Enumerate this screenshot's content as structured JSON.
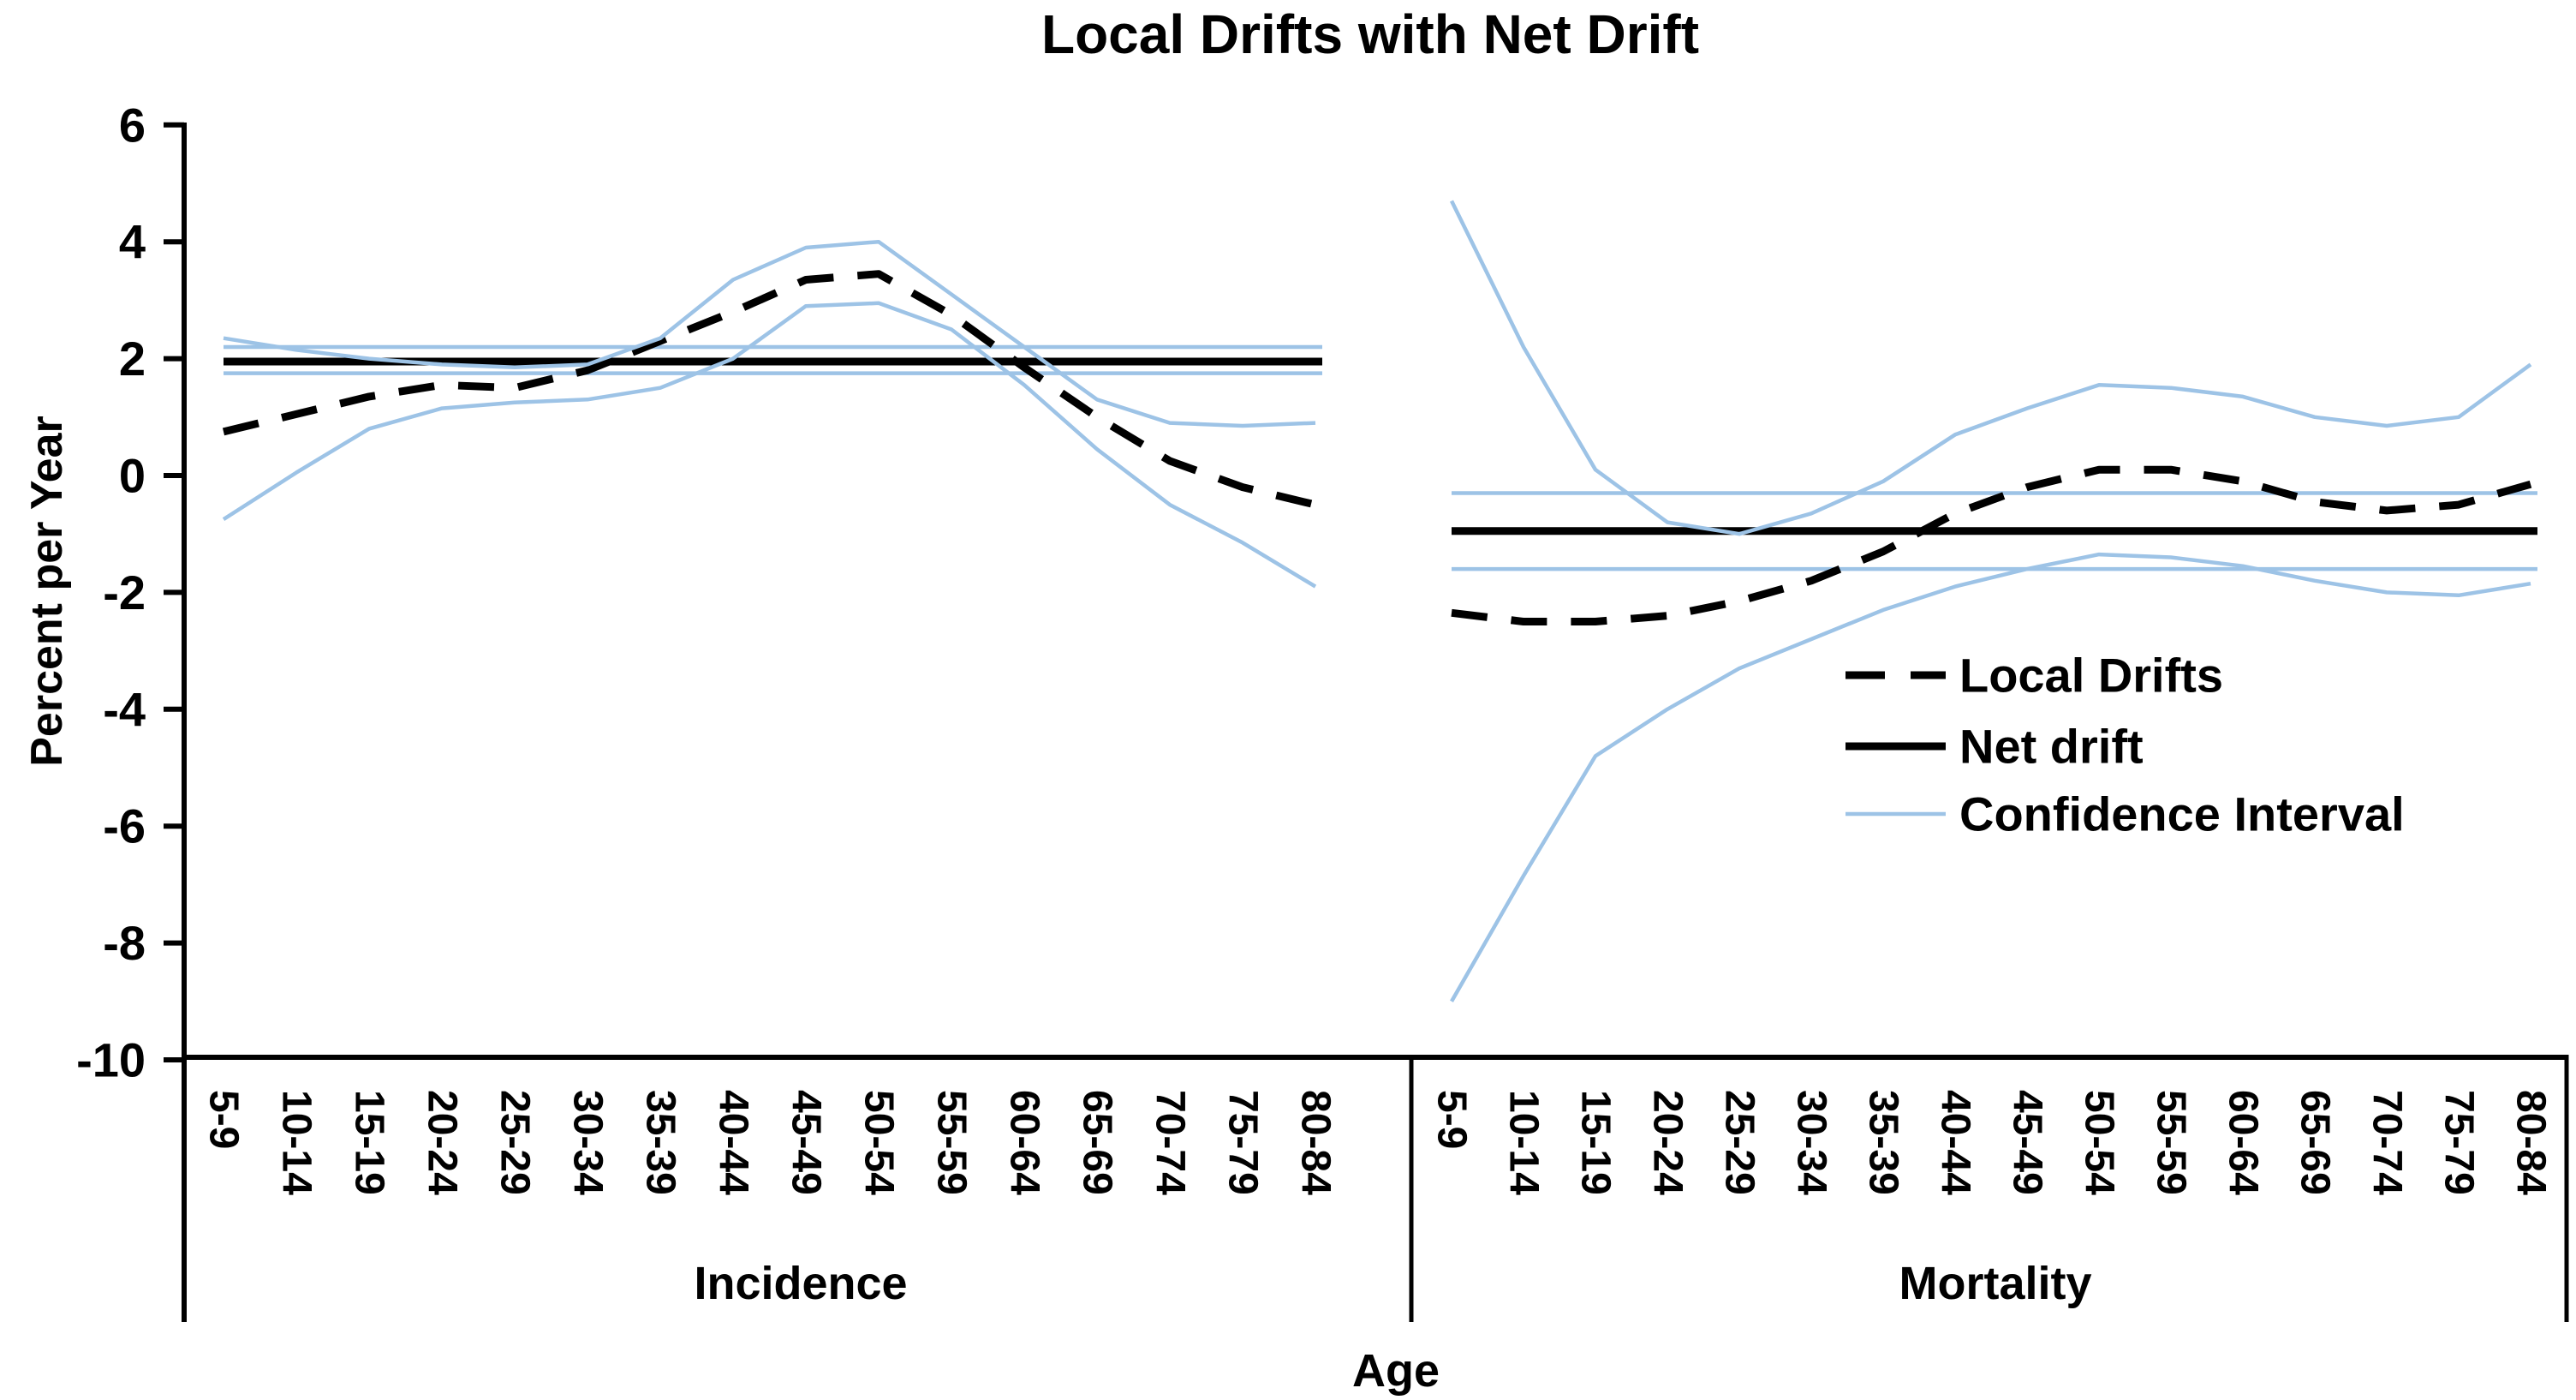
{
  "chart": {
    "title": "Local Drifts with Net Drift",
    "y_axis": {
      "label": "Percent per Year",
      "ticks": [
        6,
        4,
        2,
        0,
        -2,
        -4,
        -6,
        -8,
        -10
      ],
      "min": -10,
      "max": 6
    },
    "x_axis": {
      "label": "Age"
    },
    "colors": {
      "line_black": "#000000",
      "confidence_blue": "#9DC3E6",
      "background": "#FFFFFF"
    },
    "legend": {
      "items": [
        {
          "label": "Local Drifts",
          "style": "dashed-black"
        },
        {
          "label": "Net drift",
          "style": "solid-black"
        },
        {
          "label": "Confidence Interval",
          "style": "thin-blue"
        }
      ]
    }
  },
  "chart_data": [
    {
      "type": "line",
      "group_label": "Incidence",
      "categories": [
        "5-9",
        "10-14",
        "15-19",
        "20-24",
        "25-29",
        "30-34",
        "35-39",
        "40-44",
        "45-49",
        "50-54",
        "55-59",
        "60-64",
        "65-69",
        "70-74",
        "75-79",
        "80-84"
      ],
      "net_drift": 1.95,
      "net_drift_ci": [
        1.75,
        2.2
      ],
      "series": [
        {
          "name": "Local Drifts",
          "role": "local",
          "style": "dashed-black",
          "values": [
            0.75,
            1.05,
            1.35,
            1.55,
            1.5,
            1.8,
            2.3,
            2.8,
            3.35,
            3.45,
            2.75,
            1.85,
            1.0,
            0.25,
            -0.2,
            -0.5
          ]
        },
        {
          "name": "Confidence Interval upper",
          "role": "ci-upper",
          "style": "thin-blue",
          "values": [
            2.35,
            2.15,
            2.0,
            1.9,
            1.85,
            1.9,
            2.35,
            3.35,
            3.9,
            4.0,
            3.1,
            2.2,
            1.3,
            0.9,
            0.85,
            0.9
          ]
        },
        {
          "name": "Confidence Interval lower",
          "role": "ci-lower",
          "style": "thin-blue",
          "values": [
            -0.75,
            0.05,
            0.8,
            1.15,
            1.25,
            1.3,
            1.5,
            2.0,
            2.9,
            2.95,
            2.5,
            1.55,
            0.45,
            -0.5,
            -1.15,
            -1.9
          ]
        }
      ]
    },
    {
      "type": "line",
      "group_label": "Mortality",
      "categories": [
        "5-9",
        "10-14",
        "15-19",
        "20-24",
        "25-29",
        "30-34",
        "35-39",
        "40-44",
        "45-49",
        "50-54",
        "55-59",
        "60-64",
        "65-69",
        "70-74",
        "75-79",
        "80-84"
      ],
      "net_drift": -0.95,
      "net_drift_ci": [
        -1.6,
        -0.3
      ],
      "series": [
        {
          "name": "Local Drifts",
          "role": "local",
          "style": "dashed-black",
          "values": [
            -2.35,
            -2.5,
            -2.5,
            -2.4,
            -2.15,
            -1.8,
            -1.3,
            -0.65,
            -0.2,
            0.1,
            0.1,
            -0.1,
            -0.45,
            -0.6,
            -0.5,
            -0.15
          ]
        },
        {
          "name": "Confidence Interval upper",
          "role": "ci-upper",
          "style": "thin-blue",
          "values": [
            4.7,
            2.2,
            0.1,
            -0.8,
            -1.0,
            -0.65,
            -0.1,
            0.7,
            1.15,
            1.55,
            1.5,
            1.35,
            1.0,
            0.85,
            1.0,
            1.9
          ]
        },
        {
          "name": "Confidence Interval lower",
          "role": "ci-lower",
          "style": "thin-blue",
          "values": [
            -9.0,
            -6.85,
            -4.8,
            -4.0,
            -3.3,
            -2.8,
            -2.3,
            -1.9,
            -1.6,
            -1.35,
            -1.4,
            -1.55,
            -1.8,
            -2.0,
            -2.05,
            -1.85
          ]
        }
      ]
    }
  ]
}
